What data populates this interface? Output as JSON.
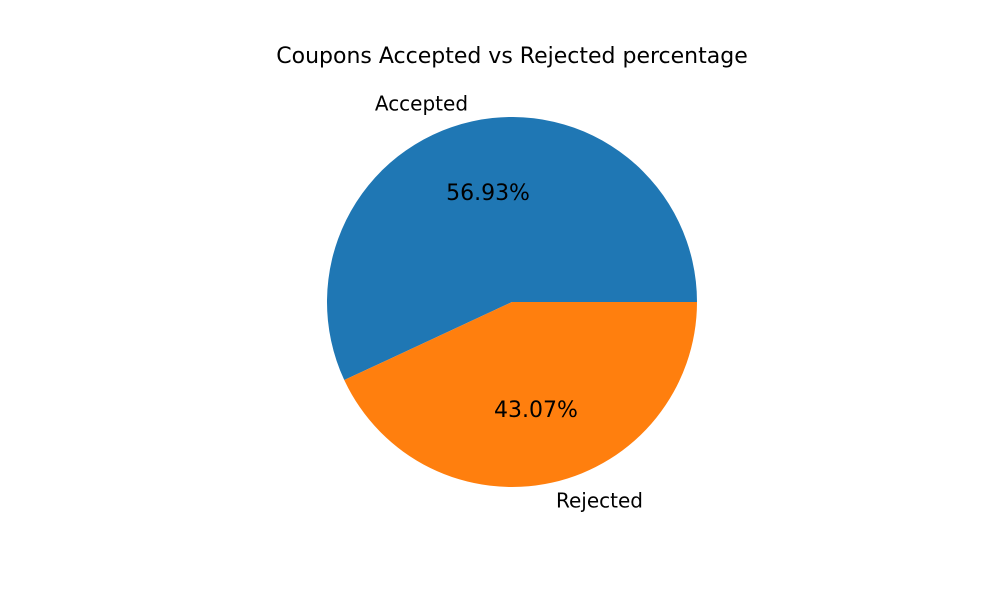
{
  "chart_data": {
    "type": "pie",
    "title": "Coupons Accepted vs Rejected percentage",
    "categories": [
      "Accepted",
      "Rejected"
    ],
    "values": [
      56.93,
      43.07
    ],
    "value_labels": [
      "56.93%",
      "43.07%"
    ],
    "colors": [
      "#1f77b4",
      "#ff7f0e"
    ],
    "start_angle_deg": 0,
    "direction": "counterclockwise",
    "legend": "none"
  }
}
